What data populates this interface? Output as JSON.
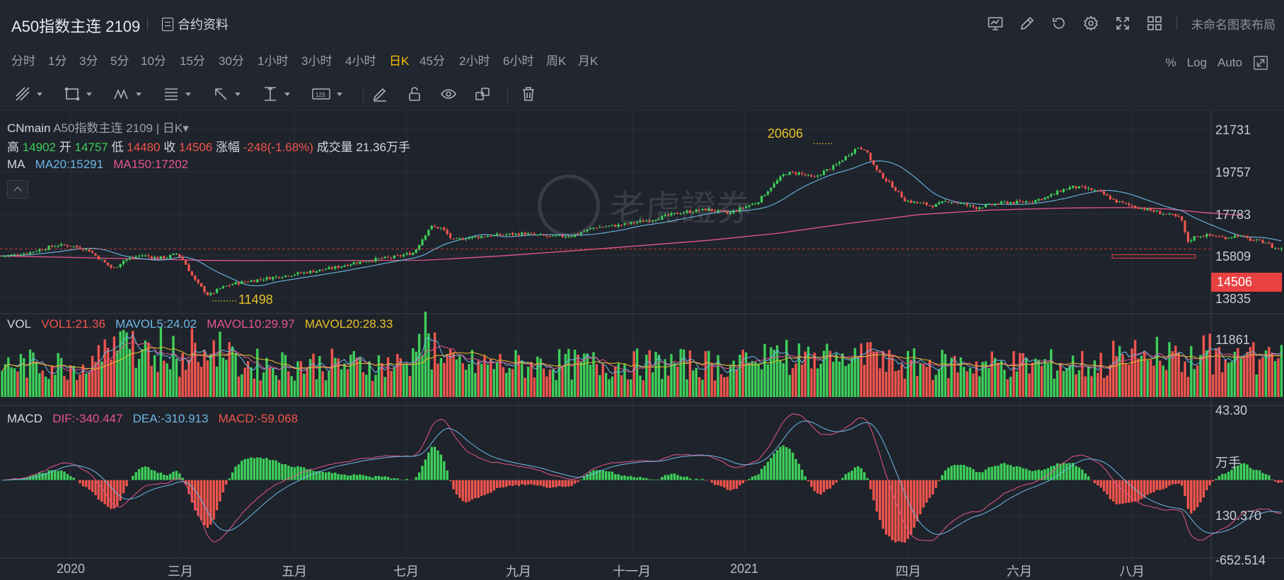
{
  "header": {
    "title": "A50指数主连 2109",
    "contract_info": "合约资料",
    "layout_name": "未命名图表布局",
    "icons": [
      "chart-template-icon",
      "draw-icon",
      "undo-icon",
      "settings-icon",
      "fullscreen-icon",
      "layout-grid-icon"
    ]
  },
  "periods": [
    "分时",
    "1分",
    "3分",
    "5分",
    "10分",
    "15分",
    "30分",
    "1小时",
    "3小时",
    "4小时",
    "日K",
    "45分",
    "2小时",
    "6小时",
    "周K",
    "月K"
  ],
  "active_period": "日K",
  "scale_options": {
    "percent": "%",
    "log": "Log",
    "auto": "Auto"
  },
  "drawing_tools": [
    "line-tool-icon",
    "rectangle-tool-icon",
    "pattern-tool-icon",
    "fibonacci-tool-icon",
    "arrow-tool-icon",
    "measure-tool-icon",
    "text-tool-icon",
    "pencil-icon",
    "lock-icon",
    "eye-icon",
    "clone-icon",
    "trash-icon"
  ],
  "main_info": {
    "source": "CNmain",
    "symbol": "A50指数主连 2109 | 日K",
    "high_label": "高",
    "high": "14902",
    "open_label": "开",
    "open": "14757",
    "low_label": "低",
    "low": "14480",
    "close_label": "收",
    "close": "14506",
    "change_label": "涨幅",
    "change": "-248(-1.68%)",
    "volume_label": "成交量",
    "volume": "21.36万手"
  },
  "ma": {
    "label": "MA",
    "ma20": "MA20:15291",
    "ma150": "MA150:17202"
  },
  "vol": {
    "label": "VOL",
    "vol1": "VOL1:21.36",
    "mavol5": "MAVOL5:24.02",
    "mavol10": "MAVOL10:29.97",
    "mavol20": "MAVOL20:28.33"
  },
  "macd": {
    "label": "MACD",
    "dif": "DIF:-340.447",
    "dea": "DEA:-310.913",
    "macd": "MACD:-59.068"
  },
  "price_axis": [
    "21731",
    "19757",
    "17783",
    "15809",
    "13835",
    "11861"
  ],
  "current_price": "14506",
  "vol_axis": {
    "value": "43.30",
    "unit": "万手"
  },
  "macd_axis": [
    "130.370",
    "-652.514"
  ],
  "months": [
    "2020",
    "三月",
    "五月",
    "七月",
    "九月",
    "十一月",
    "2021",
    "四月",
    "六月",
    "八月"
  ],
  "extremes": {
    "high": "20606",
    "low": "11498"
  },
  "watermark": "老虎證券",
  "colors": {
    "up": "#3ecf5a",
    "down": "#f0554e",
    "ma20": "#6cb8e6",
    "ma150": "#e4568e",
    "accent": "#f5c000",
    "bg": "#1f232b"
  },
  "chart_data": {
    "type": "candlestick",
    "x_range": [
      "2020-01",
      "2021-08"
    ],
    "price_key_points": [
      [
        0,
        14100
      ],
      [
        20,
        14150
      ],
      [
        40,
        14300
      ],
      [
        60,
        14500
      ],
      [
        80,
        14720
      ],
      [
        100,
        14700
      ],
      [
        110,
        14590
      ],
      [
        125,
        14450
      ],
      [
        145,
        13800
      ],
      [
        160,
        13350
      ],
      [
        175,
        13850
      ],
      [
        200,
        14150
      ],
      [
        220,
        14000
      ],
      [
        235,
        14000
      ],
      [
        250,
        14250
      ],
      [
        260,
        13800
      ],
      [
        275,
        12700
      ],
      [
        295,
        11800
      ],
      [
        310,
        12200
      ],
      [
        330,
        12500
      ],
      [
        360,
        12700
      ],
      [
        400,
        12950
      ],
      [
        440,
        13200
      ],
      [
        470,
        13400
      ],
      [
        500,
        13700
      ],
      [
        530,
        13900
      ],
      [
        560,
        14050
      ],
      [
        585,
        14300
      ],
      [
        598,
        15150
      ],
      [
        608,
        15800
      ],
      [
        625,
        15700
      ],
      [
        640,
        15000
      ],
      [
        660,
        15150
      ],
      [
        700,
        15300
      ],
      [
        740,
        15400
      ],
      [
        780,
        15200
      ],
      [
        810,
        15280
      ],
      [
        840,
        15750
      ],
      [
        880,
        15900
      ],
      [
        920,
        16200
      ],
      [
        960,
        16600
      ],
      [
        1000,
        16800
      ],
      [
        1030,
        16550
      ],
      [
        1050,
        16900
      ],
      [
        1070,
        17200
      ],
      [
        1090,
        18100
      ],
      [
        1110,
        18900
      ],
      [
        1130,
        18900
      ],
      [
        1150,
        18600
      ],
      [
        1165,
        19000
      ],
      [
        1180,
        19300
      ],
      [
        1200,
        20000
      ],
      [
        1212,
        20400
      ],
      [
        1222,
        20300
      ],
      [
        1240,
        19000
      ],
      [
        1260,
        18200
      ],
      [
        1280,
        17300
      ],
      [
        1300,
        17150
      ],
      [
        1320,
        17000
      ],
      [
        1340,
        17300
      ],
      [
        1360,
        17100
      ],
      [
        1380,
        16900
      ],
      [
        1400,
        17050
      ],
      [
        1420,
        17200
      ],
      [
        1440,
        17200
      ],
      [
        1460,
        17300
      ],
      [
        1480,
        17500
      ],
      [
        1500,
        17900
      ],
      [
        1515,
        18100
      ],
      [
        1535,
        18000
      ],
      [
        1555,
        17800
      ],
      [
        1575,
        17300
      ],
      [
        1595,
        17050
      ],
      [
        1620,
        16800
      ],
      [
        1640,
        16600
      ],
      [
        1660,
        16400
      ],
      [
        1670,
        16250
      ],
      [
        1678,
        14900
      ],
      [
        1690,
        15250
      ],
      [
        1710,
        15300
      ],
      [
        1730,
        15150
      ],
      [
        1750,
        15300
      ],
      [
        1770,
        15000
      ],
      [
        1790,
        14900
      ],
      [
        1800,
        14550
      ],
      [
        1812,
        14506
      ]
    ],
    "ma150_key_points": [
      [
        0,
        14100
      ],
      [
        150,
        13970
      ],
      [
        300,
        13840
      ],
      [
        400,
        13830
      ],
      [
        600,
        13850
      ],
      [
        700,
        14080
      ],
      [
        800,
        14370
      ],
      [
        900,
        14680
      ],
      [
        1000,
        15000
      ],
      [
        1100,
        15420
      ],
      [
        1200,
        15990
      ],
      [
        1300,
        16500
      ],
      [
        1400,
        16760
      ],
      [
        1500,
        16870
      ],
      [
        1560,
        16900
      ],
      [
        1600,
        16900
      ],
      [
        1650,
        16820
      ],
      [
        1700,
        16620
      ],
      [
        1755,
        16450
      ]
    ],
    "vol_ylim": [
      0,
      75
    ],
    "macd_ylim": [
      -700,
      650
    ],
    "price_ylim": [
      10800,
      22500
    ]
  }
}
